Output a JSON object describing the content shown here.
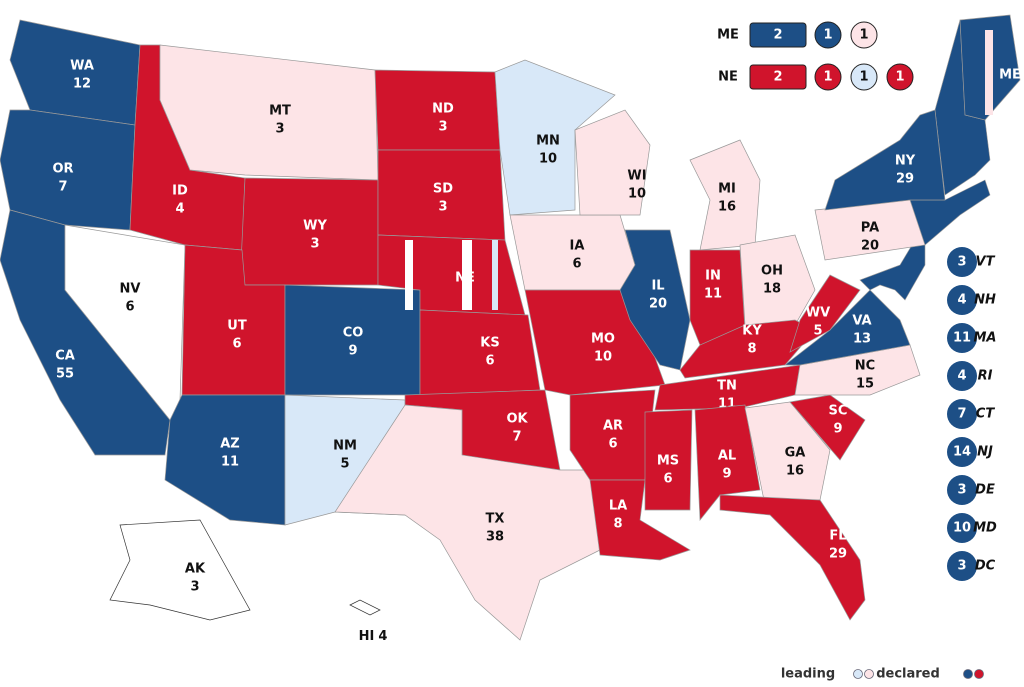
{
  "states": [
    {
      "abbr": "WA",
      "votes": 12,
      "color": "#1d4f86"
    },
    {
      "abbr": "OR",
      "votes": 7,
      "color": "#1d4f86"
    },
    {
      "abbr": "CA",
      "votes": 55,
      "color": "#1d4f86"
    },
    {
      "abbr": "NV",
      "votes": 6,
      "color": "#ffffff"
    },
    {
      "abbr": "ID",
      "votes": 4,
      "color": "#d0142c"
    },
    {
      "abbr": "MT",
      "votes": 3,
      "color": "#fde4e7"
    },
    {
      "abbr": "WY",
      "votes": 3,
      "color": "#d0142c"
    },
    {
      "abbr": "UT",
      "votes": 6,
      "color": "#d0142c"
    },
    {
      "abbr": "CO",
      "votes": 9,
      "color": "#1d4f86"
    },
    {
      "abbr": "AZ",
      "votes": 11,
      "color": "#1d4f86"
    },
    {
      "abbr": "NM",
      "votes": 5,
      "color": "#d8e8f8"
    },
    {
      "abbr": "ND",
      "votes": 3,
      "color": "#d0142c"
    },
    {
      "abbr": "SD",
      "votes": 3,
      "color": "#d0142c"
    },
    {
      "abbr": "NE",
      "color": "#d0142c"
    },
    {
      "abbr": "KS",
      "votes": 6,
      "color": "#d0142c"
    },
    {
      "abbr": "OK",
      "votes": 7,
      "color": "#d0142c"
    },
    {
      "abbr": "TX",
      "votes": 38,
      "color": "#fde4e7"
    },
    {
      "abbr": "MN",
      "votes": 10,
      "color": "#d8e8f8"
    },
    {
      "abbr": "IA",
      "votes": 6,
      "color": "#fde4e7"
    },
    {
      "abbr": "MO",
      "votes": 10,
      "color": "#d0142c"
    },
    {
      "abbr": "AR",
      "votes": 6,
      "color": "#d0142c"
    },
    {
      "abbr": "LA",
      "votes": 8,
      "color": "#d0142c"
    },
    {
      "abbr": "WI",
      "votes": 10,
      "color": "#fde4e7"
    },
    {
      "abbr": "IL",
      "votes": 20,
      "color": "#1d4f86"
    },
    {
      "abbr": "MI",
      "votes": 16,
      "color": "#fde4e7"
    },
    {
      "abbr": "IN",
      "votes": 11,
      "color": "#d0142c"
    },
    {
      "abbr": "OH",
      "votes": 18,
      "color": "#fde4e7"
    },
    {
      "abbr": "KY",
      "votes": 8,
      "color": "#d0142c"
    },
    {
      "abbr": "TN",
      "votes": 11,
      "color": "#d0142c"
    },
    {
      "abbr": "MS",
      "votes": 6,
      "color": "#d0142c"
    },
    {
      "abbr": "AL",
      "votes": 9,
      "color": "#d0142c"
    },
    {
      "abbr": "GA",
      "votes": 16,
      "color": "#fde4e7"
    },
    {
      "abbr": "FL",
      "votes": 29,
      "color": "#d0142c"
    },
    {
      "abbr": "SC",
      "votes": 9,
      "color": "#d0142c"
    },
    {
      "abbr": "NC",
      "votes": 15,
      "color": "#fde4e7"
    },
    {
      "abbr": "VA",
      "votes": 13,
      "color": "#1d4f86"
    },
    {
      "abbr": "WV",
      "votes": 5,
      "color": "#d0142c"
    },
    {
      "abbr": "PA",
      "votes": 20,
      "color": "#fde4e7"
    },
    {
      "abbr": "NY",
      "votes": 29,
      "color": "#1d4f86"
    },
    {
      "abbr": "ME",
      "color": "#1d4f86"
    },
    {
      "abbr": "AK",
      "votes": 3,
      "color": "#ffffff"
    },
    {
      "abbr": "HI",
      "votes": 4,
      "color": "#ffffff"
    }
  ],
  "district_rows": [
    {
      "label": "ME",
      "at_large": {
        "votes": 2,
        "color": "#1d4f86"
      },
      "districts": [
        {
          "votes": 1,
          "color": "#1d4f86"
        },
        {
          "votes": 1,
          "color": "#fde4e7"
        }
      ]
    },
    {
      "label": "NE",
      "at_large": {
        "votes": 2,
        "color": "#d0142c"
      },
      "districts": [
        {
          "votes": 1,
          "color": "#d0142c"
        },
        {
          "votes": 1,
          "color": "#d8e8f8"
        },
        {
          "votes": 1,
          "color": "#d0142c"
        }
      ]
    }
  ],
  "small_states_color": "#1d4f86",
  "small_states": [
    {
      "abbr": "VT",
      "votes": 3
    },
    {
      "abbr": "NH",
      "votes": 4
    },
    {
      "abbr": "MA",
      "votes": 11
    },
    {
      "abbr": "RI",
      "votes": 4
    },
    {
      "abbr": "CT",
      "votes": 7
    },
    {
      "abbr": "NJ",
      "votes": 14
    },
    {
      "abbr": "DE",
      "votes": 3
    },
    {
      "abbr": "MD",
      "votes": 10
    },
    {
      "abbr": "DC",
      "votes": 3
    }
  ],
  "legend": [
    {
      "label": "leading",
      "colors": [
        "#d8e8f8",
        "#fde4e7"
      ]
    },
    {
      "label": "declared",
      "colors": [
        "#1d4f86",
        "#d0142c"
      ]
    }
  ]
}
